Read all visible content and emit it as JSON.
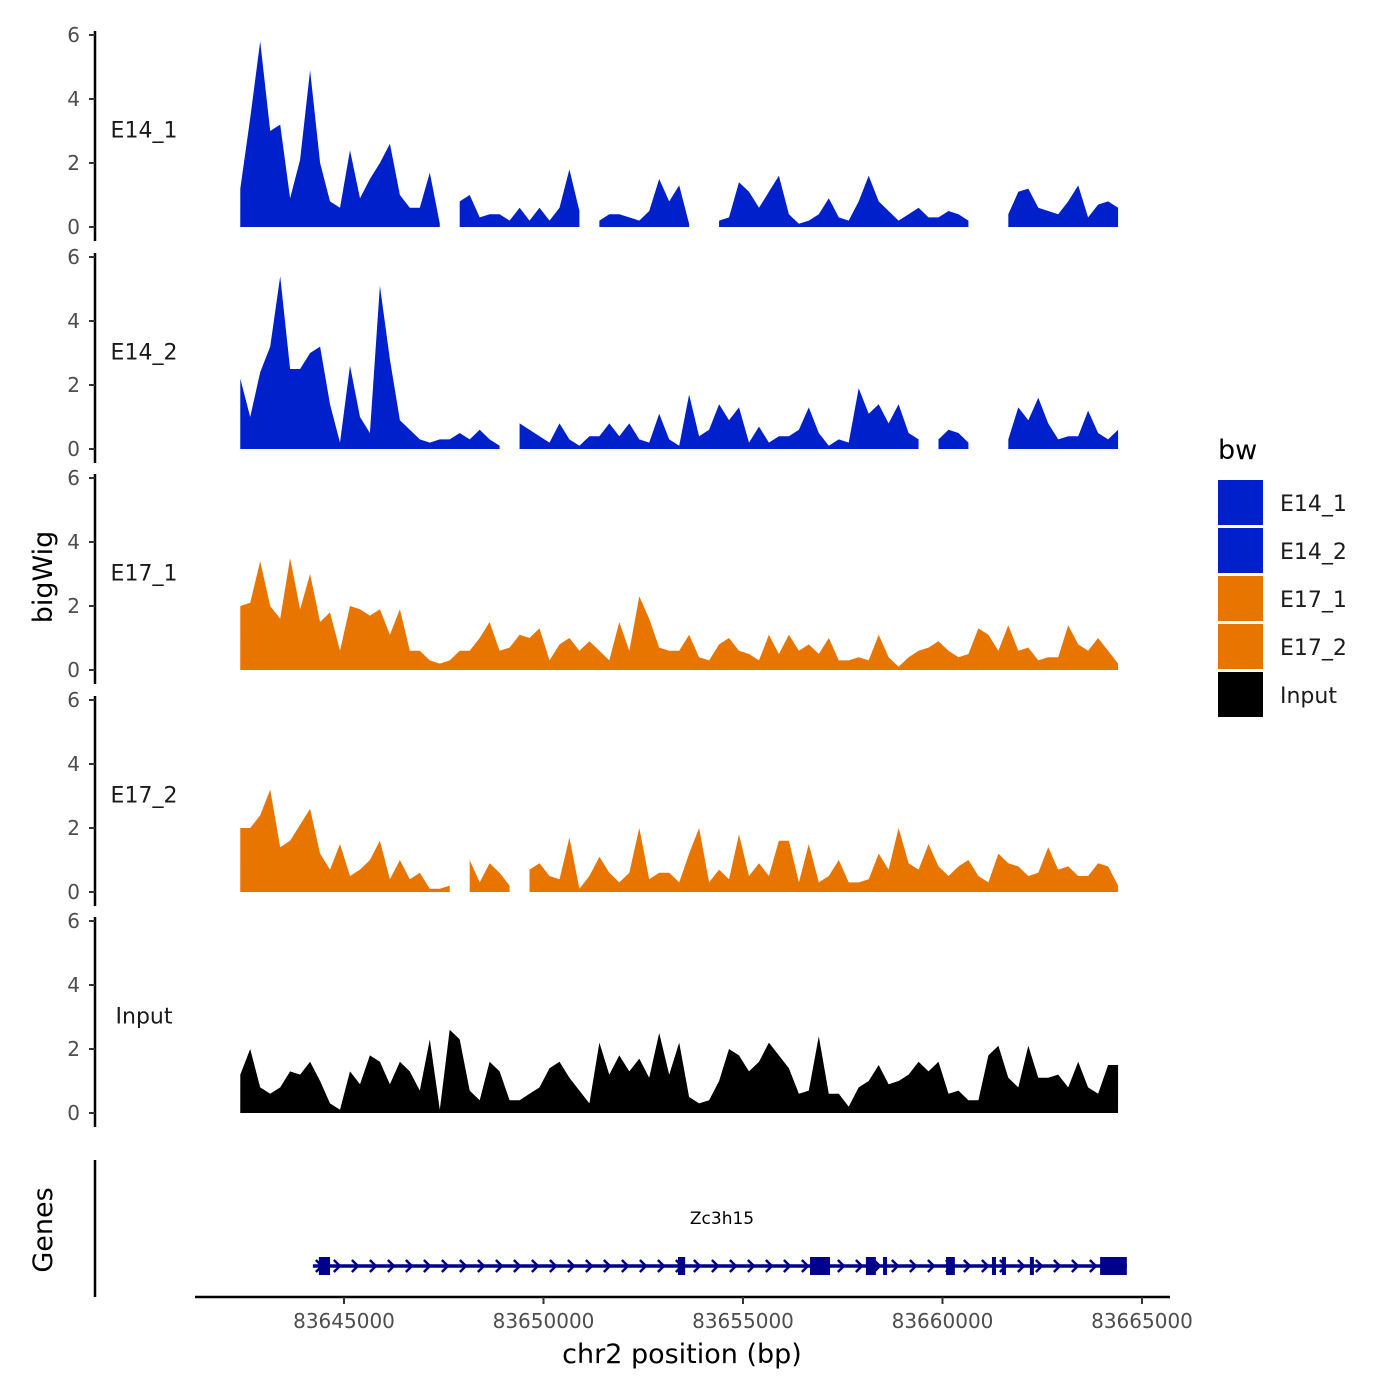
{
  "chart_data": {
    "type": "area",
    "xlabel": "chr2 position (bp)",
    "ylabel": "bigWig",
    "genes_label": "Genes",
    "xlim": [
      83641500,
      83666000
    ],
    "xticks": [
      83645000,
      83650000,
      83655000,
      83660000,
      83665000
    ],
    "xtick_labels": [
      "83645000",
      "83650000",
      "83655000",
      "83660000",
      "83665000"
    ],
    "ylim": [
      0,
      6
    ],
    "yticks": [
      0,
      2,
      4,
      6
    ],
    "ytick_labels": [
      "0",
      "2",
      "4",
      "6"
    ],
    "x_start": 83642400,
    "x_step": 250,
    "legend": {
      "title": "bw",
      "position": "right",
      "entries": [
        {
          "label": "E14_1",
          "color": "#0020CC"
        },
        {
          "label": "E14_2",
          "color": "#0020CC"
        },
        {
          "label": "E17_1",
          "color": "#E87500"
        },
        {
          "label": "E17_2",
          "color": "#E87500"
        },
        {
          "label": "Input",
          "color": "#000000"
        }
      ]
    },
    "series": [
      {
        "name": "E14_1",
        "color": "#0020CC",
        "values": [
          1.2,
          3.4,
          5.8,
          3.0,
          3.2,
          0.9,
          2.1,
          4.9,
          2.0,
          0.8,
          0.6,
          2.4,
          0.9,
          1.5,
          2.0,
          2.6,
          1.0,
          0.6,
          0.6,
          1.7,
          0.1,
          null,
          0.8,
          1.0,
          0.3,
          0.4,
          0.4,
          0.2,
          0.6,
          0.2,
          0.6,
          0.2,
          0.6,
          1.8,
          0.5,
          null,
          0.2,
          0.4,
          0.4,
          0.3,
          0.2,
          0.5,
          1.5,
          0.8,
          1.3,
          0.1,
          null,
          null,
          0.2,
          0.3,
          1.4,
          1.1,
          0.6,
          1.1,
          1.6,
          0.4,
          0.1,
          0.2,
          0.4,
          0.9,
          0.3,
          0.2,
          0.8,
          1.6,
          0.8,
          0.5,
          0.2,
          0.4,
          0.6,
          0.3,
          0.3,
          0.5,
          0.4,
          0.2,
          null,
          0.9,
          null,
          0.4,
          1.1,
          1.2,
          0.6,
          0.5,
          0.4,
          0.8,
          1.3,
          0.3,
          0.7,
          0.8,
          0.6
        ]
      },
      {
        "name": "E14_2",
        "color": "#0020CC",
        "values": [
          2.2,
          1.0,
          2.4,
          3.2,
          5.4,
          2.5,
          2.5,
          3.0,
          3.2,
          1.4,
          0.2,
          2.6,
          1.0,
          0.5,
          5.1,
          2.8,
          0.9,
          0.6,
          0.3,
          0.2,
          0.3,
          0.3,
          0.5,
          0.3,
          0.6,
          0.3,
          0.1,
          null,
          0.8,
          0.6,
          0.4,
          0.2,
          0.8,
          0.3,
          0.1,
          0.4,
          0.4,
          0.8,
          0.4,
          0.8,
          0.3,
          0.2,
          1.1,
          0.3,
          0.1,
          1.7,
          0.4,
          0.6,
          1.4,
          0.9,
          1.3,
          0.2,
          0.7,
          0.2,
          0.4,
          0.4,
          0.6,
          1.3,
          0.5,
          0.1,
          0.3,
          0.2,
          1.9,
          1.1,
          1.4,
          0.8,
          1.4,
          0.5,
          0.3,
          null,
          0.3,
          0.6,
          0.5,
          0.2,
          null,
          0.8,
          null,
          0.3,
          1.3,
          0.9,
          1.6,
          0.8,
          0.3,
          0.4,
          0.4,
          1.2,
          0.5,
          0.3,
          0.6
        ]
      },
      {
        "name": "E17_1",
        "color": "#E87500",
        "values": [
          2.0,
          2.1,
          3.4,
          2.0,
          1.6,
          3.5,
          1.9,
          3.0,
          1.5,
          1.8,
          0.6,
          2.0,
          1.9,
          1.7,
          1.9,
          1.1,
          1.9,
          0.6,
          0.6,
          0.3,
          0.2,
          0.3,
          0.6,
          0.6,
          1.0,
          1.5,
          0.6,
          0.7,
          1.1,
          1.0,
          1.3,
          0.3,
          0.8,
          1.0,
          0.6,
          0.9,
          0.6,
          0.3,
          1.5,
          0.6,
          2.3,
          1.6,
          0.7,
          0.6,
          0.6,
          1.1,
          0.4,
          0.3,
          0.8,
          1.0,
          0.6,
          0.5,
          0.3,
          1.1,
          0.5,
          1.1,
          0.6,
          0.8,
          0.5,
          1.0,
          0.3,
          0.3,
          0.4,
          0.3,
          1.1,
          0.4,
          0.1,
          0.4,
          0.6,
          0.7,
          0.9,
          0.6,
          0.4,
          0.5,
          1.3,
          1.1,
          0.6,
          1.4,
          0.6,
          0.7,
          0.3,
          0.4,
          0.4,
          1.4,
          0.8,
          0.6,
          1.0,
          0.6,
          0.2
        ]
      },
      {
        "name": "E17_2",
        "color": "#E87500",
        "values": [
          2.0,
          2.0,
          2.4,
          3.2,
          1.4,
          1.6,
          2.1,
          2.6,
          1.2,
          0.7,
          1.5,
          0.5,
          0.7,
          1.0,
          1.6,
          0.4,
          1.0,
          0.4,
          0.6,
          0.1,
          0.1,
          0.2,
          null,
          1.0,
          0.3,
          0.9,
          0.6,
          0.2,
          null,
          0.7,
          0.9,
          0.5,
          0.4,
          1.7,
          0.1,
          0.5,
          1.1,
          0.6,
          0.3,
          0.6,
          2.0,
          0.4,
          0.6,
          0.6,
          0.3,
          1.2,
          2.0,
          0.3,
          0.7,
          0.4,
          1.8,
          0.5,
          0.9,
          0.5,
          1.6,
          1.6,
          0.3,
          1.5,
          0.3,
          0.5,
          1.0,
          0.3,
          0.3,
          0.4,
          1.2,
          0.7,
          2.0,
          0.9,
          0.7,
          1.5,
          0.8,
          0.5,
          0.8,
          1.0,
          0.5,
          0.3,
          1.2,
          0.9,
          0.8,
          0.5,
          0.6,
          1.4,
          0.7,
          0.8,
          0.5,
          0.5,
          0.9,
          0.8,
          0.2
        ]
      },
      {
        "name": "Input",
        "color": "#000000",
        "values": [
          1.2,
          2.0,
          0.8,
          0.6,
          0.8,
          1.3,
          1.2,
          1.6,
          1.0,
          0.3,
          0.1,
          1.3,
          0.9,
          1.8,
          1.6,
          0.9,
          1.6,
          1.3,
          0.7,
          2.3,
          0.1,
          2.6,
          2.3,
          0.7,
          0.4,
          1.6,
          1.3,
          0.4,
          0.4,
          0.6,
          0.8,
          1.4,
          1.6,
          1.1,
          0.7,
          0.3,
          2.2,
          1.2,
          1.8,
          1.3,
          1.7,
          1.1,
          2.5,
          1.2,
          2.2,
          0.5,
          0.3,
          0.4,
          1.0,
          2.0,
          1.8,
          1.3,
          1.6,
          2.2,
          1.8,
          1.4,
          0.6,
          0.7,
          2.4,
          0.6,
          0.6,
          0.2,
          0.8,
          1.0,
          1.5,
          0.9,
          1.0,
          1.2,
          1.6,
          1.3,
          1.6,
          0.6,
          0.7,
          0.4,
          0.4,
          1.8,
          2.1,
          1.1,
          0.8,
          2.1,
          1.1,
          1.1,
          1.2,
          0.8,
          1.6,
          0.8,
          0.6,
          1.5,
          1.5
        ]
      }
    ],
    "gene": {
      "name": "Zc3h15",
      "strand": "+",
      "color": "#00008B",
      "start": 83644220,
      "end": 83664620,
      "exons": [
        [
          83644370,
          83644650
        ],
        [
          83653370,
          83653550
        ],
        [
          83656680,
          83657180
        ],
        [
          83658080,
          83658330
        ],
        [
          83658510,
          83658610
        ],
        [
          83660090,
          83660310
        ],
        [
          83661240,
          83661340
        ],
        [
          83661490,
          83661570
        ],
        [
          83662190,
          83662290
        ],
        [
          83663950,
          83664620
        ]
      ]
    }
  }
}
